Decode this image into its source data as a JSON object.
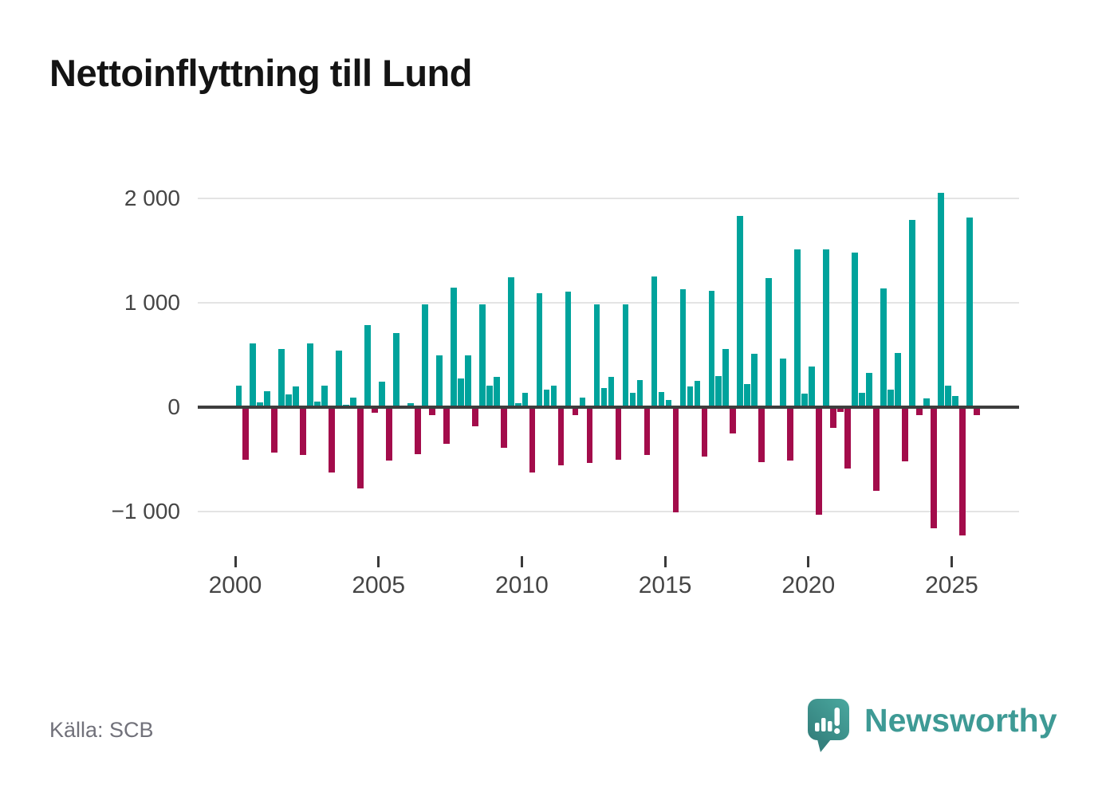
{
  "title": "Nettoinflyttning till Lund",
  "source": "Källa: SCB",
  "branding": {
    "name": "Newsworthy"
  },
  "chart_data": {
    "type": "bar",
    "title": "Nettoinflyttning till Lund",
    "frequency": "quarterly",
    "start_year": 2000,
    "values": [
      205,
      -505,
      610,
      45,
      150,
      -435,
      555,
      120,
      195,
      -455,
      610,
      55,
      210,
      -630,
      545,
      25,
      90,
      -780,
      790,
      -55,
      245,
      -515,
      710,
      0,
      40,
      -450,
      990,
      -80,
      495,
      -355,
      1145,
      275,
      495,
      -185,
      990,
      210,
      290,
      -390,
      1250,
      40,
      135,
      -625,
      1095,
      170,
      205,
      -555,
      1110,
      -75,
      90,
      -535,
      990,
      185,
      290,
      -505,
      990,
      135,
      260,
      -455,
      1255,
      145,
      70,
      -1010,
      1135,
      200,
      255,
      -475,
      1115,
      300,
      560,
      -250,
      1835,
      225,
      515,
      -530,
      1240,
      0,
      465,
      -515,
      1510,
      130,
      390,
      -1030,
      1510,
      -195,
      -45,
      -590,
      1480,
      135,
      330,
      -800,
      1140,
      165,
      520,
      -520,
      1800,
      -75,
      85,
      -1160,
      2060,
      205,
      110,
      -1230,
      1820,
      -75
    ],
    "x_tick_labels": [
      "2000",
      "2005",
      "2010",
      "2015",
      "2020",
      "2025"
    ],
    "y_ticks": [
      2000,
      1000,
      0,
      -1000
    ],
    "y_tick_labels": [
      "2 000",
      "1 000",
      "0",
      "−1 000"
    ],
    "ylim": [
      -1300,
      2150
    ],
    "grid": "horizontal",
    "legend": "none",
    "colors": {
      "positive": "#00a39c",
      "negative": "#a30c4b"
    }
  }
}
